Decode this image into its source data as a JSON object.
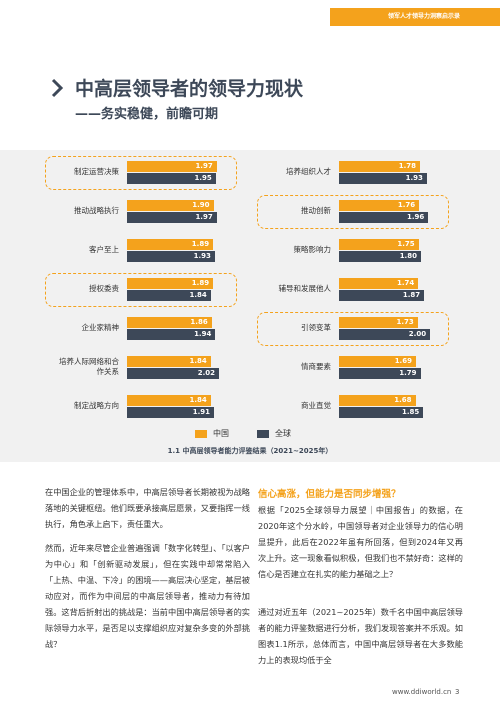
{
  "header": {
    "tag": "领军人才领导力洞察启示录"
  },
  "title": "中高层领导者的领导力现状",
  "subtitle": "——务实稳健，前瞻可期",
  "chart_data": {
    "type": "bar",
    "orientation": "horizontal",
    "caption": "1.1 中高层领导者能力评鉴结果（2021~2025年）",
    "categories": [
      "制定运营决策",
      "推动战略执行",
      "客户至上",
      "授权委责",
      "企业家精神",
      "培养人际网络和合作关系",
      "制定战略方向",
      "培养组织人才",
      "推动创新",
      "策略影响力",
      "辅导和发展他人",
      "引领变革",
      "情商要素",
      "商业直觉"
    ],
    "series": [
      {
        "name": "中国",
        "color": "#f4a21c",
        "values": [
          1.97,
          1.9,
          1.89,
          1.89,
          1.86,
          1.84,
          1.84,
          1.78,
          1.76,
          1.75,
          1.74,
          1.73,
          1.69,
          1.68
        ],
        "value_labels": [
          "1.97",
          "1.90",
          "1.89",
          "1.89",
          "1.86",
          "1.84",
          "1.84",
          "1.78",
          "1.76",
          "1.75",
          "1.74",
          "1.73",
          "1.69",
          "1.68"
        ]
      },
      {
        "name": "全球",
        "color": "#3d4858",
        "values": [
          1.95,
          1.97,
          1.93,
          1.84,
          1.94,
          2.02,
          1.91,
          1.93,
          1.96,
          1.8,
          1.87,
          2.0,
          1.79,
          1.85
        ],
        "value_labels": [
          "1.95",
          "1.97",
          "1.93",
          "1.84",
          "1.94",
          "2.02",
          "1.91",
          "1.93",
          "1.96",
          "1.80",
          "1.87",
          "2.00",
          "1.79",
          "1.85"
        ]
      }
    ]
  },
  "body": {
    "left": [
      "在中国企业的管理体系中，中高层领导者长期被视为战略落地的关键枢纽。他们既要承接高层愿景，又要指挥一线执行，角色承上启下，责任重大。",
      "然而，近年来尽管企业普遍强调「数字化转型」、「以客户为中心」和「创新驱动发展」，但在实践中却常常陷入「上热、中温、下冷」的困境——高层决心坚定，基层被动应对，而作为中间层的中高层领导者，推动力有待加强。这背后折射出的挑战是：当前中国中高层领导者的实际领导力水平，是否足以支撑组织应对复杂多变的外部挑战？"
    ],
    "right_heading": "信心高涨，但能力是否同步增强？",
    "right": [
      "根据「2025全球领导力展望｜中国报告」的数据，在2020年这个分水岭，中国领导者对企业领导力的信心明显提升，此后在2022年虽有所回落，但到2024年又再次上升。这一现象看似积极，但我们也不禁好奇：这样的信心是否建立在扎实的能力基础之上？",
      "通过对近五年（2021~2025年）数千名中国中高层领导者的能力评鉴数据进行分析，我们发现答案并不乐观。如图表1.1所示，总体而言，中国中高层领导者在大多数能力上的表现均低于全"
    ]
  },
  "footer": {
    "url": "www.ddiworld.cn",
    "page": 3
  }
}
